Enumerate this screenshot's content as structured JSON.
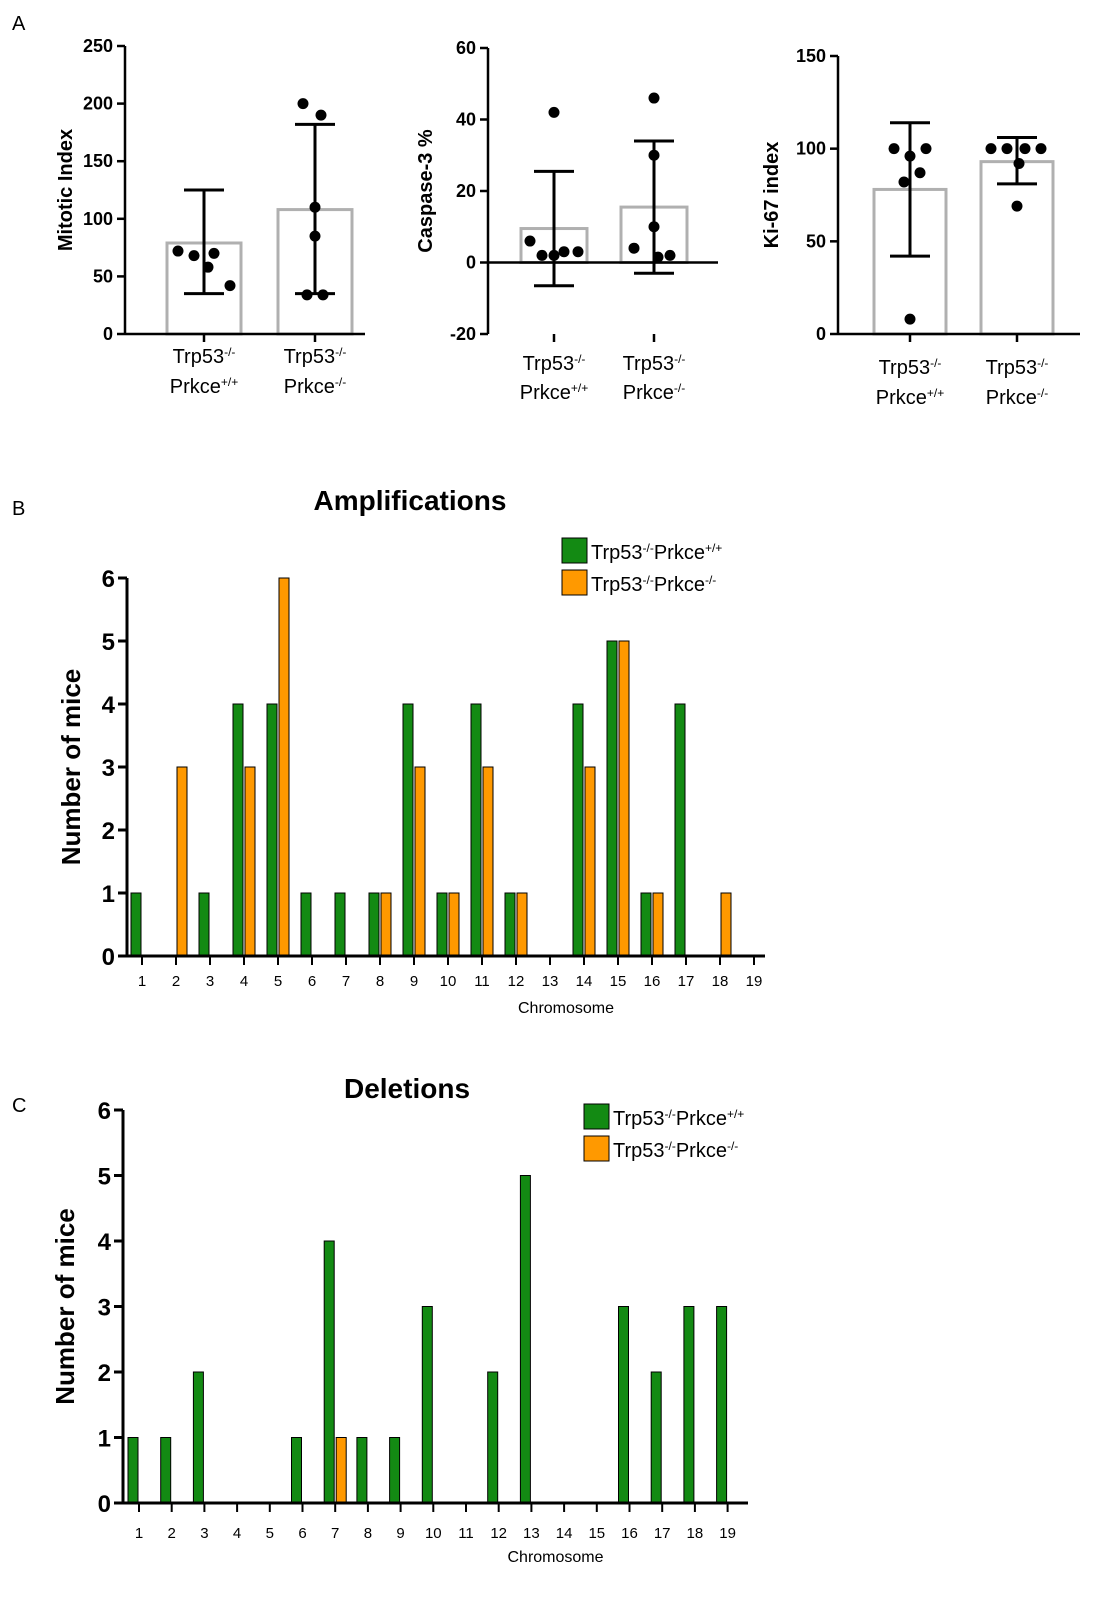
{
  "panels": {
    "a": "A",
    "b": "B",
    "c": "C"
  },
  "colors": {
    "green": "#138a13",
    "orange": "#ff9900",
    "bar_outline": "#b0b0b0"
  },
  "genotype_labels": {
    "wt": {
      "line1": "Trp53",
      "sup1": "-/-",
      "line2": "Prkce",
      "sup2": "+/+"
    },
    "ko": {
      "line1": "Trp53",
      "sup1": "-/-",
      "line2": "Prkce",
      "sup2": "-/-"
    }
  },
  "chart_data": [
    {
      "id": "mitotic",
      "type": "bar",
      "ylabel": "Mitotic Index",
      "ylim": [
        0,
        250
      ],
      "yticks": [
        "0",
        "50",
        "100",
        "150",
        "200",
        "250"
      ],
      "categories": [
        "Trp53-/- Prkce+/+",
        "Trp53-/- Prkce-/-"
      ],
      "values": [
        79,
        108
      ],
      "error_low": [
        35,
        35
      ],
      "error_high": [
        125,
        182
      ],
      "points": [
        [
          72,
          68,
          58,
          70,
          42
        ],
        [
          200,
          190,
          110,
          85,
          34,
          34
        ]
      ]
    },
    {
      "id": "caspase",
      "type": "bar",
      "ylabel": "Caspase-3 %",
      "ylim": [
        -20,
        60
      ],
      "yticks": [
        "-20",
        "0",
        "20",
        "40",
        "60"
      ],
      "categories": [
        "Trp53-/- Prkce+/+",
        "Trp53-/- Prkce-/-"
      ],
      "values": [
        9.5,
        15.5
      ],
      "error_low": [
        -6.5,
        -3
      ],
      "error_high": [
        25.5,
        34
      ],
      "points": [
        [
          42,
          6,
          3,
          2,
          2,
          3
        ],
        [
          46,
          30,
          10,
          4,
          1.5,
          2
        ]
      ]
    },
    {
      "id": "ki67",
      "type": "bar",
      "ylabel": "Ki-67 index",
      "ylim": [
        0,
        150
      ],
      "yticks": [
        "0",
        "50",
        "100",
        "150"
      ],
      "categories": [
        "Trp53-/- Prkce+/+",
        "Trp53-/- Prkce-/-"
      ],
      "values": [
        78,
        93
      ],
      "error_low": [
        42,
        81
      ],
      "error_high": [
        114,
        106
      ],
      "points": [
        [
          100,
          96,
          100,
          87,
          82,
          8
        ],
        [
          100,
          100,
          100,
          100,
          92,
          69
        ]
      ]
    },
    {
      "id": "amplifications",
      "type": "bar",
      "title": "Amplifications",
      "xlabel": "Chromosome",
      "ylabel": "Number of mice",
      "ylim": [
        0,
        6
      ],
      "yticks": [
        "0",
        "1",
        "2",
        "3",
        "4",
        "5",
        "6"
      ],
      "categories": [
        "1",
        "2",
        "3",
        "4",
        "5",
        "6",
        "7",
        "8",
        "9",
        "10",
        "11",
        "12",
        "13",
        "14",
        "15",
        "16",
        "17",
        "18",
        "19"
      ],
      "series": [
        {
          "name": "Trp53-/-Prkce+/+",
          "values": [
            1,
            0,
            1,
            4,
            4,
            1,
            1,
            1,
            4,
            1,
            4,
            1,
            0,
            4,
            5,
            1,
            4,
            0,
            0
          ]
        },
        {
          "name": "Trp53-/-Prkce-/-",
          "values": [
            0,
            3,
            0,
            3,
            6,
            0,
            0,
            1,
            3,
            1,
            3,
            1,
            0,
            3,
            5,
            1,
            0,
            1,
            0
          ]
        }
      ],
      "legend": "top-right"
    },
    {
      "id": "deletions",
      "type": "bar",
      "title": "Deletions",
      "xlabel": "Chromosome",
      "ylabel": "Number of mice",
      "ylim": [
        0,
        6
      ],
      "yticks": [
        "0",
        "1",
        "2",
        "3",
        "4",
        "5",
        "6"
      ],
      "categories": [
        "1",
        "2",
        "3",
        "4",
        "5",
        "6",
        "7",
        "8",
        "9",
        "10",
        "11",
        "12",
        "13",
        "14",
        "15",
        "16",
        "17",
        "18",
        "19"
      ],
      "series": [
        {
          "name": "Trp53-/-Prkce+/+",
          "values": [
            1,
            1,
            2,
            0,
            0,
            1,
            4,
            1,
            1,
            3,
            0,
            2,
            5,
            0,
            0,
            3,
            2,
            3,
            3
          ]
        },
        {
          "name": "Trp53-/-Prkce-/-",
          "values": [
            0,
            0,
            0,
            0,
            0,
            0,
            1,
            0,
            0,
            0,
            0,
            0,
            0,
            0,
            0,
            0,
            0,
            0,
            0
          ]
        }
      ],
      "legend": "top-right"
    }
  ]
}
